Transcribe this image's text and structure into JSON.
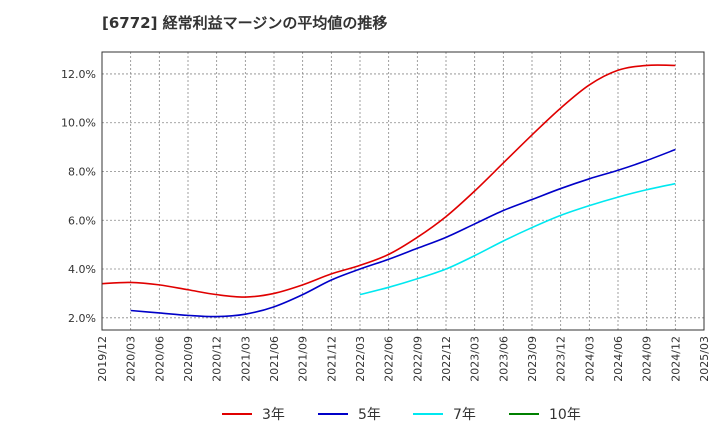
{
  "chart_data": {
    "type": "line",
    "title": "[6772]  経常利益マージンの平均値の推移",
    "xlabel": "",
    "ylabel": "",
    "x_ticks": [
      "2019/12",
      "2020/03",
      "2020/06",
      "2020/09",
      "2020/12",
      "2021/03",
      "2021/06",
      "2021/09",
      "2021/12",
      "2022/03",
      "2022/06",
      "2022/09",
      "2022/12",
      "2023/03",
      "2023/06",
      "2023/09",
      "2023/12",
      "2024/03",
      "2024/06",
      "2024/09",
      "2024/12",
      "2025/03"
    ],
    "y_ticks": [
      "2.0%",
      "4.0%",
      "6.0%",
      "8.0%",
      "10.0%",
      "12.0%"
    ],
    "ylim": [
      1.5,
      12.9
    ],
    "grid": true,
    "legend_position": "bottom",
    "colors": {
      "3年": "#e00000",
      "5年": "#0000c8",
      "7年": "#00e8f0",
      "10年": "#008000"
    },
    "series": [
      {
        "name": "3年",
        "color": "#e00000",
        "x": [
          "2019/12",
          "2020/03",
          "2020/06",
          "2020/09",
          "2020/12",
          "2021/03",
          "2021/06",
          "2021/09",
          "2021/12",
          "2022/03",
          "2022/06",
          "2022/09",
          "2022/12",
          "2023/03",
          "2023/06",
          "2023/09",
          "2023/12",
          "2024/03",
          "2024/06",
          "2024/09",
          "2024/12"
        ],
        "values": [
          3.4,
          3.45,
          3.35,
          3.15,
          2.95,
          2.85,
          3.0,
          3.35,
          3.8,
          4.15,
          4.6,
          5.3,
          6.15,
          7.2,
          8.35,
          9.5,
          10.6,
          11.55,
          12.15,
          12.35,
          12.35
        ]
      },
      {
        "name": "5年",
        "color": "#0000c8",
        "x": [
          "2020/03",
          "2020/06",
          "2020/09",
          "2020/12",
          "2021/03",
          "2021/06",
          "2021/09",
          "2021/12",
          "2022/03",
          "2022/06",
          "2022/09",
          "2022/12",
          "2023/03",
          "2023/06",
          "2023/09",
          "2023/12",
          "2024/03",
          "2024/06",
          "2024/09",
          "2024/12"
        ],
        "values": [
          2.3,
          2.2,
          2.1,
          2.05,
          2.15,
          2.45,
          2.95,
          3.55,
          4.0,
          4.4,
          4.85,
          5.3,
          5.85,
          6.4,
          6.85,
          7.3,
          7.7,
          8.05,
          8.45,
          8.9
        ]
      },
      {
        "name": "7年",
        "color": "#00e8f0",
        "x": [
          "2022/03",
          "2022/06",
          "2022/09",
          "2022/12",
          "2023/03",
          "2023/06",
          "2023/09",
          "2023/12",
          "2024/03",
          "2024/06",
          "2024/09",
          "2024/12"
        ],
        "values": [
          2.95,
          3.25,
          3.6,
          4.0,
          4.55,
          5.15,
          5.7,
          6.2,
          6.6,
          6.95,
          7.25,
          7.5
        ]
      },
      {
        "name": "10年",
        "color": "#008000",
        "x": [],
        "values": []
      }
    ]
  }
}
